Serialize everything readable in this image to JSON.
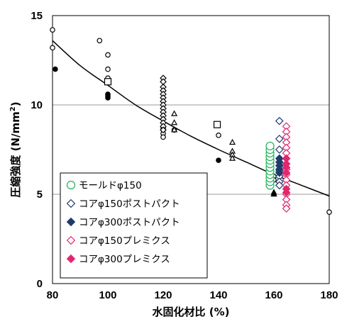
{
  "chart_data": {
    "type": "scatter",
    "xlabel": "水固化材比 (%)",
    "ylabel": "圧縮強度 (N/mm²)",
    "ylabel_parts": {
      "main": "圧縮強度 (N/mm",
      "sup": "2",
      "close": ")"
    },
    "xlim": [
      80,
      180
    ],
    "ylim": [
      0,
      15
    ],
    "xticks": [
      "80",
      "100",
      "120",
      "140",
      "160",
      "180"
    ],
    "yticks": [
      "0",
      "5",
      "10",
      "15"
    ],
    "grid": "horizontal",
    "legend_placement": "bottom-left",
    "colors": {
      "green": "#1fb25b",
      "navy": "#1f3a6b",
      "pink": "#e0286e",
      "black": "#000000"
    },
    "trend_curve": [
      [
        80,
        13.6
      ],
      [
        90,
        12.2
      ],
      [
        100,
        11.1
      ],
      [
        110,
        10.0
      ],
      [
        120,
        9.1
      ],
      [
        130,
        8.25
      ],
      [
        140,
        7.5
      ],
      [
        150,
        6.8
      ],
      [
        160,
        6.1
      ],
      [
        170,
        5.5
      ],
      [
        180,
        4.9
      ]
    ],
    "series": [
      {
        "name": "モールドφ150",
        "marker": "circle-open",
        "color": "#1fb25b",
        "points": [
          [
            158.6,
            5.5
          ],
          [
            158.6,
            5.7
          ],
          [
            158.6,
            5.9
          ],
          [
            158.6,
            6.1
          ],
          [
            158.6,
            6.3
          ],
          [
            158.6,
            6.5
          ],
          [
            158.6,
            6.7
          ],
          [
            158.6,
            6.9
          ],
          [
            158.6,
            7.1
          ],
          [
            158.6,
            7.3
          ],
          [
            158.6,
            7.5
          ],
          [
            158.6,
            7.7
          ]
        ]
      },
      {
        "name": "コアφ150ポストパクト",
        "marker": "diamond-open",
        "color": "#1f3a6b",
        "points": [
          [
            162,
            9.1
          ],
          [
            162,
            8.1
          ],
          [
            162,
            7.5
          ],
          [
            162,
            7.0
          ],
          [
            162,
            6.6
          ],
          [
            162,
            6.3
          ],
          [
            162,
            6.0
          ],
          [
            162,
            5.7
          ],
          [
            162,
            5.5
          ]
        ]
      },
      {
        "name": "コアφ300ポストパクト",
        "marker": "diamond-filled",
        "color": "#1f3a6b",
        "points": [
          [
            162,
            7.0
          ],
          [
            162,
            6.8
          ],
          [
            162,
            6.6
          ],
          [
            162,
            6.4
          ],
          [
            162,
            6.2
          ]
        ]
      },
      {
        "name": "コアφ150プレミクス",
        "marker": "diamond-open",
        "color": "#e0286e",
        "points": [
          [
            164.5,
            8.8
          ],
          [
            164.5,
            8.5
          ],
          [
            164.5,
            8.2
          ],
          [
            164.5,
            7.9
          ],
          [
            164.5,
            7.6
          ],
          [
            164.5,
            7.3
          ],
          [
            164.5,
            7.0
          ],
          [
            164.5,
            6.7
          ],
          [
            164.5,
            6.4
          ],
          [
            164.5,
            6.1
          ],
          [
            164.5,
            5.8
          ],
          [
            164.5,
            5.5
          ],
          [
            164.5,
            5.0
          ],
          [
            164.5,
            4.7
          ],
          [
            164.5,
            4.4
          ],
          [
            164.5,
            4.2
          ]
        ]
      },
      {
        "name": "コアφ300プレミクス",
        "marker": "diamond-filled",
        "color": "#e0286e",
        "points": [
          [
            164.5,
            7.0
          ],
          [
            164.5,
            6.7
          ],
          [
            164.5,
            6.5
          ],
          [
            164.5,
            6.2
          ],
          [
            164.5,
            5.3
          ],
          [
            164.5,
            5.1
          ]
        ]
      }
    ],
    "other_points": [
      {
        "marker": "circle-open",
        "color": "#000000",
        "points": [
          [
            80,
            14.2
          ],
          [
            80,
            13.2
          ],
          [
            97,
            13.6
          ],
          [
            100,
            12.8
          ],
          [
            100,
            12.0
          ],
          [
            100,
            11.5
          ],
          [
            120,
            8.6
          ],
          [
            120,
            8.4
          ],
          [
            120,
            8.2
          ],
          [
            124,
            8.6
          ],
          [
            140,
            8.3
          ],
          [
            160,
            6.0
          ],
          [
            160,
            5.8
          ],
          [
            180,
            4.0
          ]
        ]
      },
      {
        "marker": "circle-filled",
        "color": "#000000",
        "points": [
          [
            81,
            12.0
          ],
          [
            100,
            10.6
          ],
          [
            100,
            10.5
          ],
          [
            100,
            10.4
          ],
          [
            120,
            8.7
          ],
          [
            140,
            6.9
          ]
        ]
      },
      {
        "marker": "square-open",
        "color": "#000000",
        "points": [
          [
            100,
            11.3
          ],
          [
            139.5,
            8.9
          ]
        ]
      },
      {
        "marker": "diamond-open",
        "color": "#000000",
        "points": [
          [
            120,
            11.5
          ],
          [
            120,
            11.3
          ],
          [
            120,
            11.0
          ],
          [
            120,
            10.8
          ],
          [
            120,
            10.6
          ],
          [
            120,
            10.4
          ],
          [
            120,
            10.2
          ],
          [
            120,
            10.0
          ],
          [
            120,
            9.8
          ],
          [
            120,
            9.6
          ],
          [
            120,
            9.4
          ],
          [
            120,
            9.2
          ],
          [
            120,
            9.0
          ],
          [
            120,
            8.8
          ],
          [
            120,
            8.6
          ]
        ]
      },
      {
        "marker": "triangle-open",
        "color": "#000000",
        "points": [
          [
            124,
            9.5
          ],
          [
            124,
            9.0
          ],
          [
            124,
            8.6
          ],
          [
            145,
            7.9
          ],
          [
            145,
            7.4
          ],
          [
            145,
            7.2
          ],
          [
            145,
            7.0
          ],
          [
            160,
            5.1
          ],
          [
            160,
            5.0
          ]
        ]
      },
      {
        "marker": "triangle-filled",
        "color": "#000000",
        "points": [
          [
            160,
            5.0
          ]
        ]
      }
    ]
  }
}
